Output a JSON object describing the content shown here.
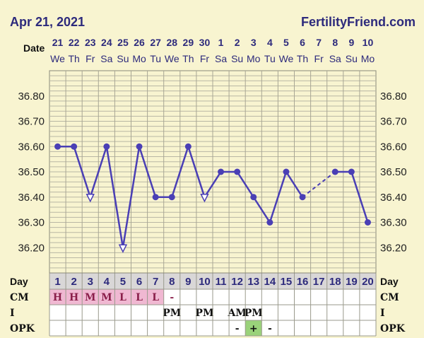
{
  "header": {
    "date": "Apr 21, 2021",
    "brand": "FertilityFriend.com"
  },
  "chart_data": {
    "type": "line",
    "ylim": [
      36.1,
      36.9
    ],
    "y_ticks": [
      "36.80",
      "36.70",
      "36.60",
      "36.50",
      "36.40",
      "36.30",
      "36.20"
    ],
    "date_label": "Date",
    "dates": [
      "21",
      "22",
      "23",
      "24",
      "25",
      "26",
      "27",
      "28",
      "29",
      "30",
      "1",
      "2",
      "3",
      "4",
      "5",
      "6",
      "7",
      "8",
      "9",
      "10"
    ],
    "weekdays": [
      "We",
      "Th",
      "Fr",
      "Sa",
      "Su",
      "Mo",
      "Tu",
      "We",
      "Th",
      "Fr",
      "Sa",
      "Su",
      "Mo",
      "Tu",
      "We",
      "Th",
      "Fr",
      "Sa",
      "Su",
      "Mo"
    ],
    "day_label": "Day",
    "days": [
      "1",
      "2",
      "3",
      "4",
      "5",
      "6",
      "7",
      "8",
      "9",
      "10",
      "11",
      "12",
      "13",
      "14",
      "15",
      "16",
      "17",
      "18",
      "19",
      "20"
    ],
    "temps": [
      36.6,
      36.6,
      36.4,
      36.6,
      36.2,
      36.6,
      36.4,
      36.4,
      36.6,
      36.4,
      36.5,
      36.5,
      36.4,
      36.3,
      36.5,
      36.4,
      null,
      36.5,
      36.5,
      36.3
    ],
    "open_markers": [
      3,
      5,
      10
    ],
    "dashed_segment": [
      16,
      18
    ],
    "line_color": "#4a3fb5",
    "rows": [
      {
        "label": "CM",
        "values": [
          "H",
          "H",
          "M",
          "M",
          "L",
          "L",
          "L",
          "-",
          "",
          "",
          "",
          "",
          "",
          "",
          "",
          "",
          "",
          "",
          "",
          ""
        ],
        "highlight": "#f0b8d2"
      },
      {
        "label": "I",
        "values": [
          "",
          "",
          "",
          "",
          "",
          "",
          "",
          "PM",
          "",
          "PM",
          "",
          "AM",
          "PM",
          "",
          "",
          "",
          "",
          "",
          "",
          ""
        ]
      },
      {
        "label": "OPK",
        "values": [
          "",
          "",
          "",
          "",
          "",
          "",
          "",
          "",
          "",
          "",
          "",
          "-",
          "+",
          "-",
          "",
          "",
          "",
          "",
          "",
          ""
        ],
        "highlight_index": 12,
        "highlight": "#9ad27a"
      }
    ]
  }
}
